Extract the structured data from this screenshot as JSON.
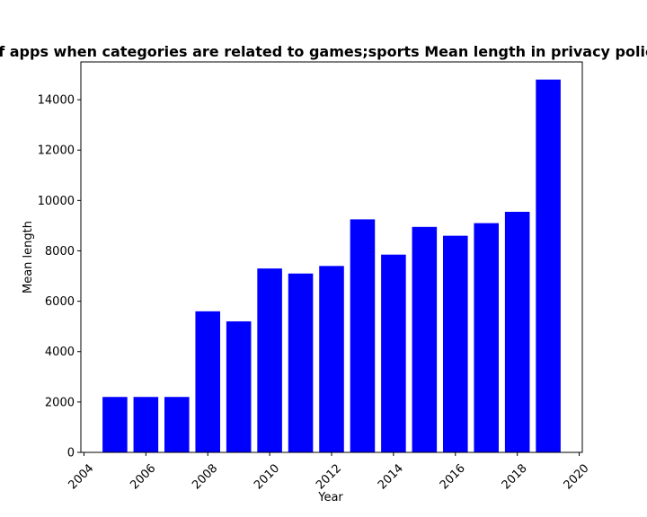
{
  "chart_data": {
    "type": "bar",
    "title": "Number of apps when categories are related to games;sports Mean length in privacy policies by Year",
    "xlabel": "Year",
    "ylabel": "Mean length",
    "x": [
      2005,
      2006,
      2007,
      2008,
      2009,
      2010,
      2011,
      2012,
      2013,
      2014,
      2015,
      2016,
      2017,
      2018,
      2019
    ],
    "values": [
      2200,
      2200,
      2200,
      5600,
      5200,
      7300,
      7100,
      7400,
      9250,
      7850,
      8950,
      8600,
      9100,
      9550,
      14800
    ],
    "xlim": [
      2003.9,
      2020.1
    ],
    "ylim": [
      0,
      15500
    ],
    "xticks": [
      2004,
      2006,
      2008,
      2010,
      2012,
      2014,
      2016,
      2018,
      2020
    ],
    "yticks": [
      0,
      2000,
      4000,
      6000,
      8000,
      10000,
      12000,
      14000
    ],
    "bar_color": "#0000ff",
    "grid": false,
    "legend": "none"
  }
}
